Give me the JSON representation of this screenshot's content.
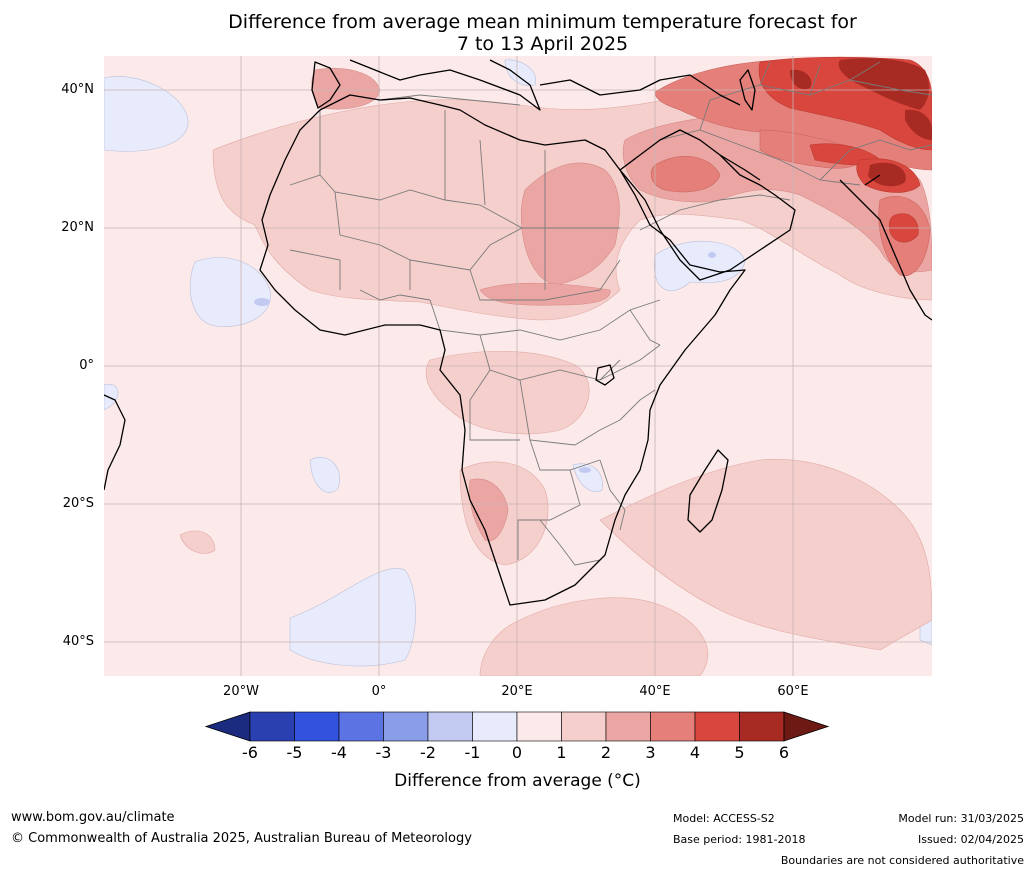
{
  "title": {
    "line1": "Difference from average mean minimum temperature forecast for",
    "line2": "7 to 13 April 2025"
  },
  "map": {
    "lat_labels": [
      "40°N",
      "20°N",
      "0°",
      "20°S",
      "40°S"
    ],
    "lon_labels": [
      "20°W",
      "0°",
      "20°E",
      "40°E",
      "60°E"
    ]
  },
  "colorbar": {
    "ticks": [
      "-6",
      "-5",
      "-4",
      "-3",
      "-2",
      "-1",
      "0",
      "1",
      "2",
      "3",
      "4",
      "5",
      "6"
    ],
    "colors": [
      "#1b2b7f",
      "#2a3fb0",
      "#3352de",
      "#5b73e3",
      "#8a9de9",
      "#c2caf2",
      "#e8ebfb",
      "#fbeae9",
      "#f5cfcc",
      "#eba6a3",
      "#e57f79",
      "#d9463d",
      "#a82b23",
      "#6e1a14"
    ],
    "label": "Difference from average (°C)"
  },
  "footer": {
    "website": "www.bom.gov.au/climate",
    "copyright": "© Commonwealth of Australia 2025, Australian Bureau of Meteorology",
    "model": "Model: ACCESS-S2",
    "base_period": "Base period: 1981-2018",
    "model_run": "Model run: 31/03/2025",
    "issued": "Issued: 02/04/2025",
    "disclaimer": "Boundaries are not considered authoritative"
  }
}
